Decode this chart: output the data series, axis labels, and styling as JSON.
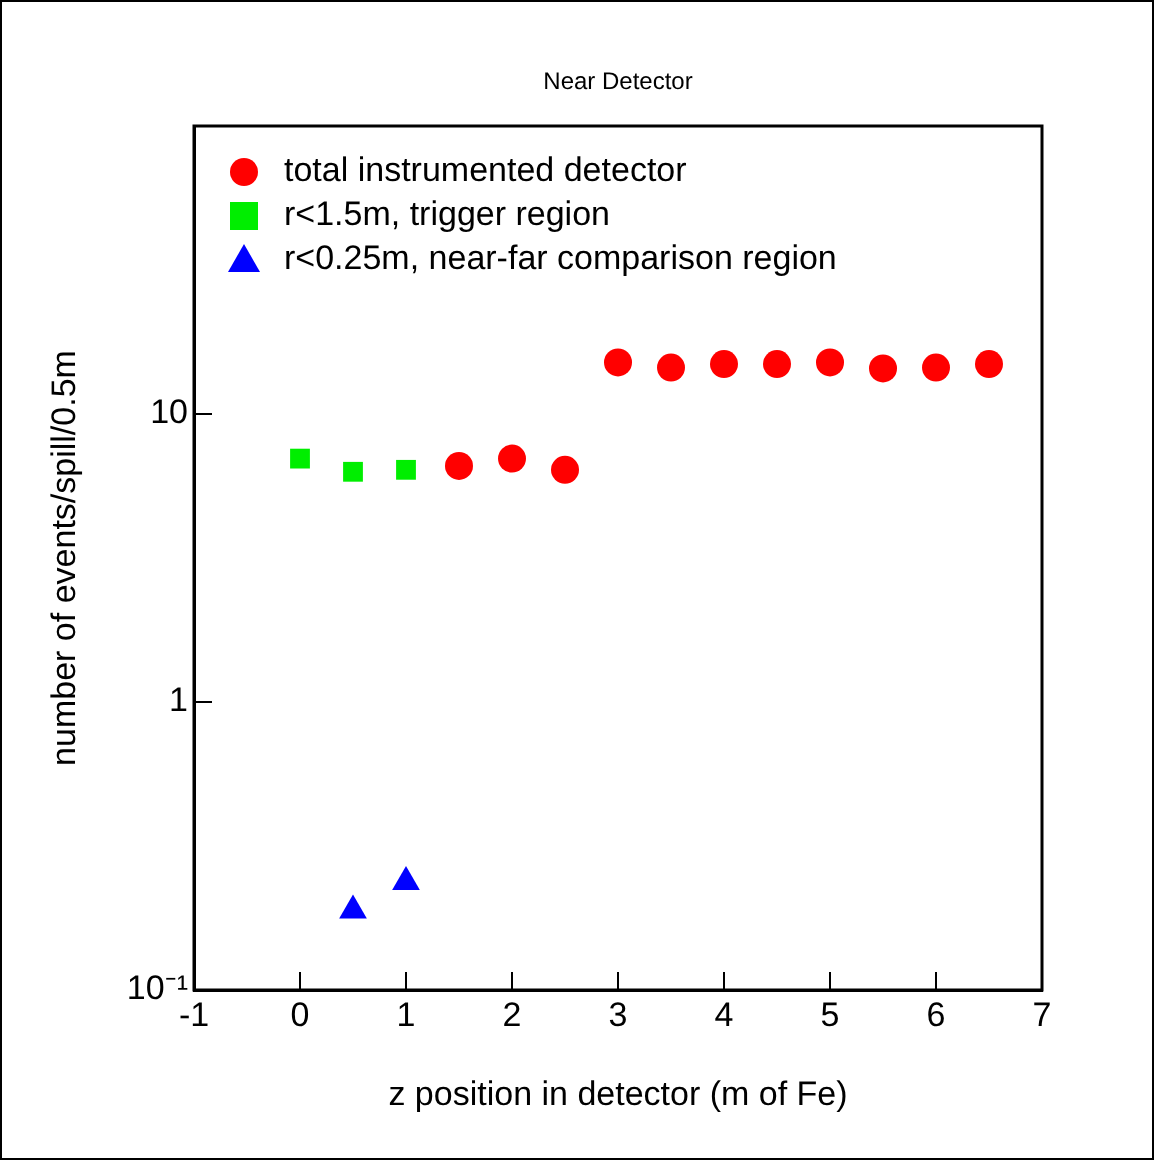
{
  "chart_data": {
    "type": "scatter",
    "title": "Near Detector",
    "xlabel": "z position in detector (m of Fe)",
    "ylabel": "number of events/spill/0.5m",
    "log": "y",
    "legend": "top left",
    "xlim": [
      -1,
      7
    ],
    "xticks": [
      -1,
      0,
      1,
      2,
      3,
      4,
      5,
      6,
      7
    ],
    "ylim": [
      0.1,
      100
    ],
    "yticks": [
      {
        "value": 0.1,
        "label": "10⁻¹"
      },
      1,
      10
    ],
    "series": [
      {
        "name": "total instrumented detector",
        "color": "#ff0000",
        "marker": "circle",
        "x": [
          1.5,
          2,
          2.5,
          3,
          3.5,
          4,
          4.5,
          5,
          5.5,
          6,
          6.5
        ],
        "values": [
          6.6,
          7.0,
          6.4,
          15.1,
          14.5,
          14.9,
          14.9,
          15.1,
          14.4,
          14.5,
          14.9
        ]
      },
      {
        "name": "r<1.5m, trigger region",
        "color": "#00ee00",
        "marker": "square",
        "x": [
          0,
          0.5,
          1
        ],
        "values": [
          7.0,
          6.3,
          6.4
        ]
      },
      {
        "name": "r<0.25m, near-far comparison region",
        "color": "#0000ff",
        "marker": "triangle",
        "x": [
          0.5,
          1
        ],
        "values": [
          0.189,
          0.237
        ]
      }
    ]
  }
}
